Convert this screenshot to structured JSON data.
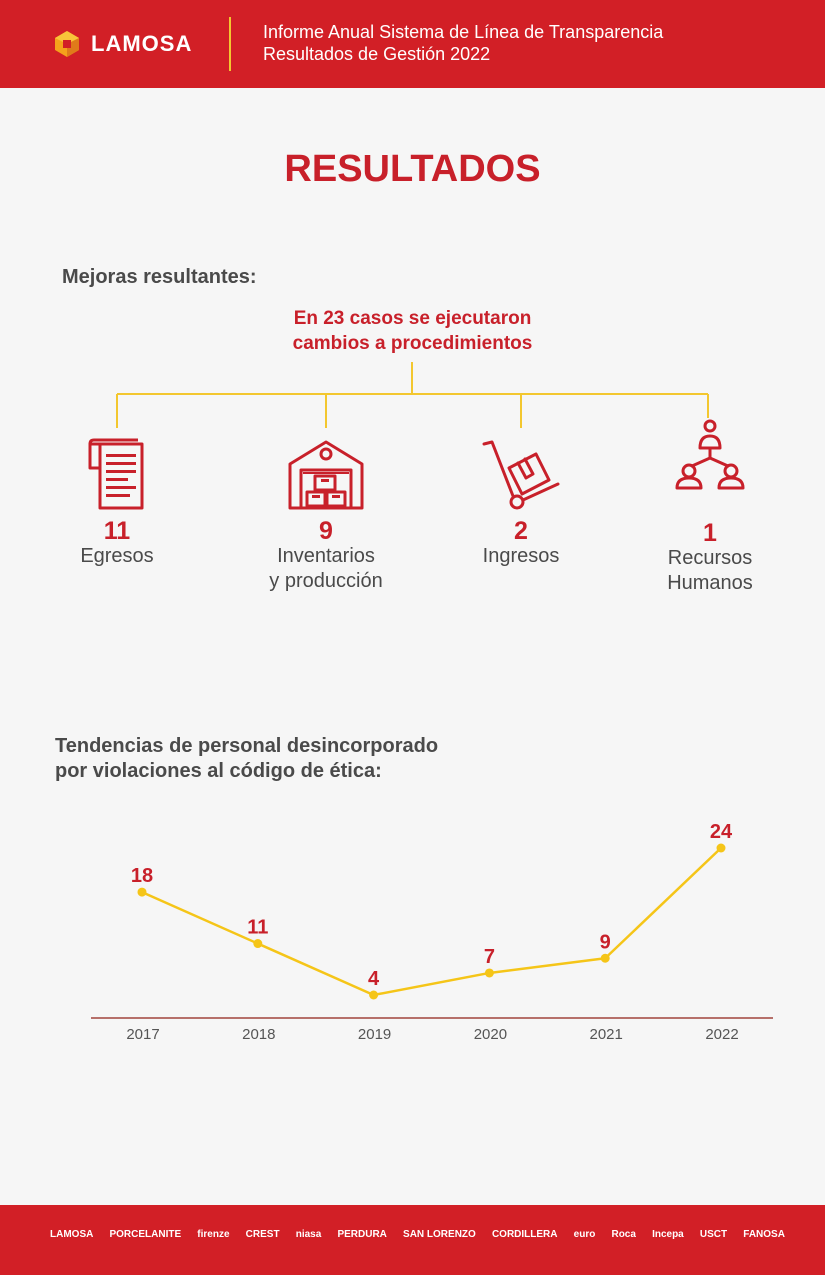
{
  "header": {
    "brand": "LAMOSA",
    "title_line1": "Informe Anual Sistema de Línea de Transparencia",
    "title_line2": "Resultados de Gestión 2022"
  },
  "page_title": "RESULTADOS",
  "improvements": {
    "label": "Mejoras resultantes:",
    "summary_line1": "En 23 casos se ejecutaron",
    "summary_line2": "cambios a procedimientos",
    "categories": [
      {
        "count": "11",
        "line1": "Egresos",
        "line2": "",
        "icon": "receipt-icon"
      },
      {
        "count": "9",
        "line1": "Inventarios",
        "line2": "y producción",
        "icon": "warehouse-icon"
      },
      {
        "count": "2",
        "line1": "Ingresos",
        "line2": "",
        "icon": "hand-truck-icon"
      },
      {
        "count": "1",
        "line1": "Recursos",
        "line2": "Humanos",
        "icon": "people-network-icon"
      }
    ]
  },
  "trend": {
    "label_line1": "Tendencias de personal desincorporado",
    "label_line2": "por violaciones al código de ética:"
  },
  "chart_data": {
    "type": "line",
    "title": "",
    "xlabel": "",
    "ylabel": "",
    "x": [
      "2017",
      "2018",
      "2019",
      "2020",
      "2021",
      "2022"
    ],
    "series": [
      {
        "values": [
          18,
          11,
          4,
          7,
          9,
          24
        ]
      }
    ],
    "ylim": [
      0,
      26
    ],
    "grid": false,
    "data_labels": true,
    "line_color": "#f5c518",
    "label_color": "#c8202a",
    "axis_color": "#a0443c"
  },
  "footer": {
    "logos": [
      "LAMOSA",
      "PORCELANITE",
      "firenze",
      "CREST",
      "niasa",
      "PERDURA",
      "SAN LORENZO",
      "CORDILLERA",
      "euro",
      "Roca",
      "Incepa",
      "USCT",
      "FANOSA"
    ]
  },
  "colors": {
    "brand_red": "#d21f26",
    "accent_yellow": "#f3c72f",
    "text_red": "#c8202a"
  }
}
